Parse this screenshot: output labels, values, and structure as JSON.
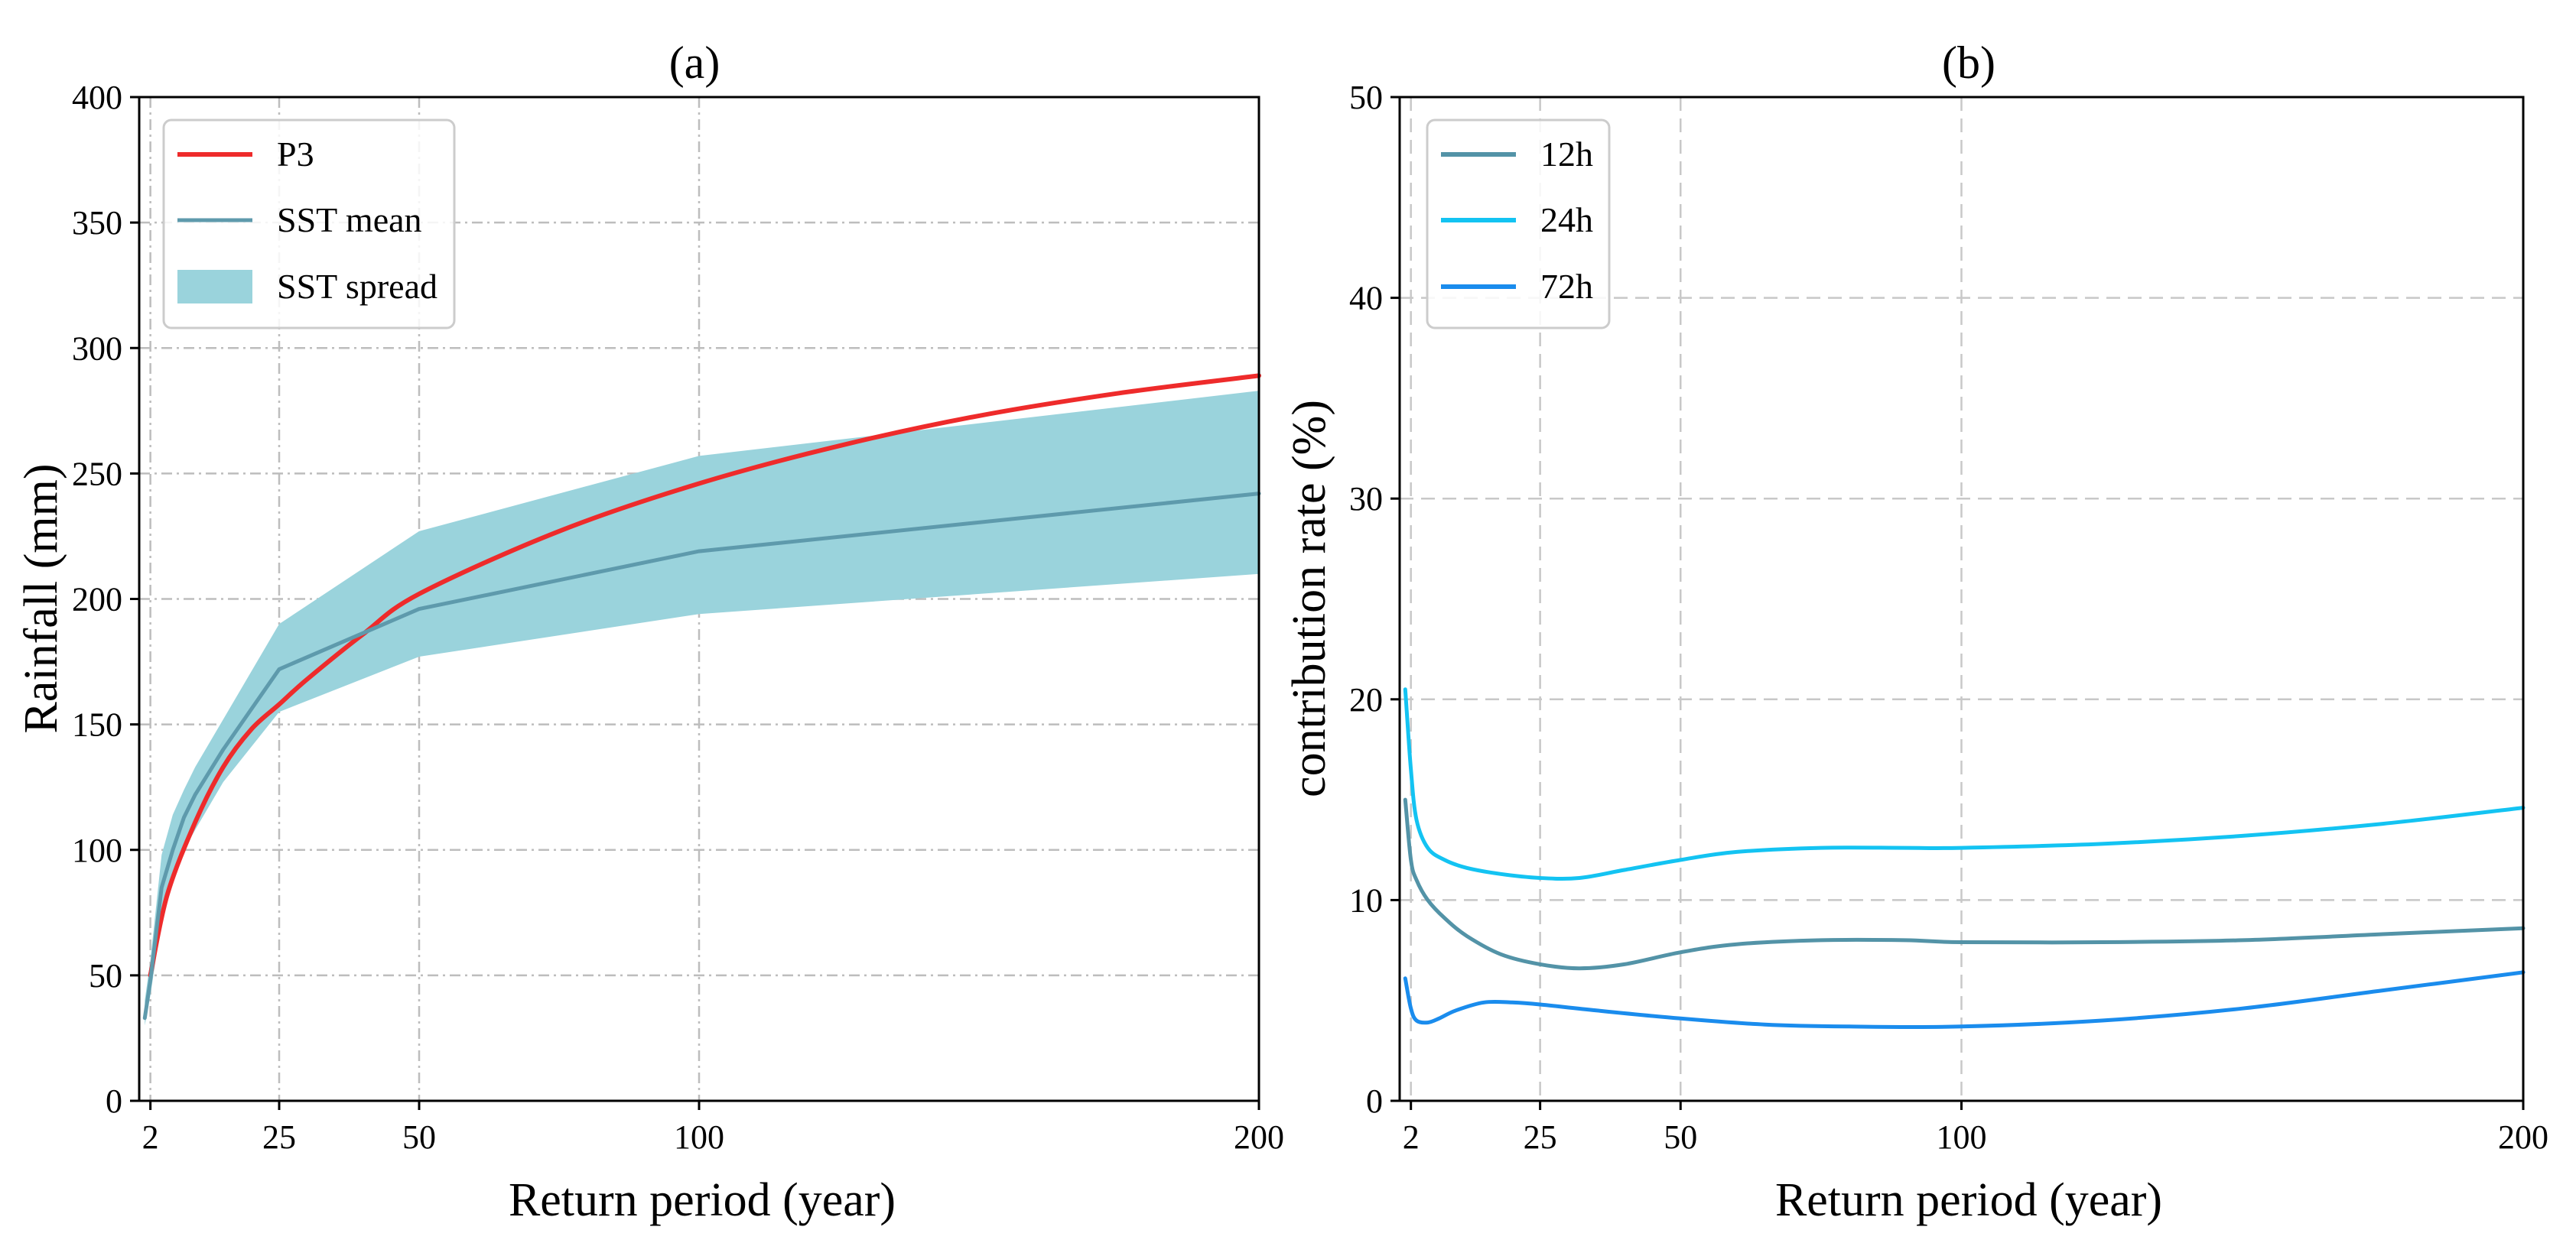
{
  "chart_data": [
    {
      "type": "line",
      "panel": "(a)",
      "title": "(a)",
      "xlabel": "Return period (year)",
      "ylabel": "Rainfall (mm)",
      "xlim": [
        0,
        200
      ],
      "ylim": [
        0,
        400
      ],
      "xticks": [
        2,
        25,
        50,
        100,
        200
      ],
      "yticks": [
        0,
        50,
        100,
        150,
        200,
        250,
        300,
        350,
        400
      ],
      "grid": "on, dash-dot",
      "legend_position": "upper-left",
      "series": [
        {
          "name": "P3",
          "kind": "line",
          "color": "#ee2b2b",
          "x": [
            2,
            5,
            10,
            15,
            20,
            25,
            30,
            40,
            50,
            75,
            100,
            125,
            150,
            175,
            200
          ],
          "y": [
            50,
            82,
            111,
            133,
            148,
            158,
            168,
            186,
            202,
            227,
            246,
            261,
            273,
            282,
            289
          ]
        },
        {
          "name": "SST mean",
          "kind": "line",
          "color": "#5e9aac",
          "x": [
            1,
            2,
            4,
            6,
            8,
            10,
            15,
            25,
            50,
            100,
            200
          ],
          "y": [
            33,
            48,
            85,
            100,
            113,
            122,
            140,
            172,
            196,
            219,
            242
          ]
        },
        {
          "name": "SST spread",
          "kind": "band",
          "color": "#9ad3dc",
          "x": [
            1,
            2,
            4,
            6,
            8,
            10,
            15,
            25,
            50,
            100,
            200
          ],
          "lower": [
            30,
            42,
            72,
            88,
            100,
            108,
            127,
            155,
            177,
            194,
            210
          ],
          "upper": [
            40,
            56,
            98,
            114,
            124,
            133,
            152,
            190,
            227,
            257,
            283
          ]
        }
      ]
    },
    {
      "type": "line",
      "panel": "(b)",
      "title": "(b)",
      "xlabel": "Return period (year)",
      "ylabel": "contribution rate (%)",
      "xlim": [
        0,
        200
      ],
      "ylim": [
        0,
        50
      ],
      "xticks": [
        2,
        25,
        50,
        100,
        200
      ],
      "yticks": [
        0,
        10,
        20,
        30,
        40,
        50
      ],
      "grid": "on, dashed",
      "legend_position": "upper-left",
      "series": [
        {
          "name": "12h",
          "color": "#5393a7",
          "x": [
            1,
            2,
            3,
            5,
            8,
            12,
            18,
            25,
            32,
            40,
            50,
            60,
            75,
            90,
            100,
            125,
            150,
            175,
            200
          ],
          "y": [
            15.0,
            12.0,
            11.0,
            10.0,
            9.1,
            8.2,
            7.3,
            6.8,
            6.6,
            6.8,
            7.4,
            7.8,
            8.0,
            8.0,
            7.9,
            7.9,
            8.0,
            8.3,
            8.6
          ]
        },
        {
          "name": "24h",
          "color": "#13c3f2",
          "x": [
            1,
            2,
            3,
            5,
            8,
            12,
            18,
            25,
            32,
            40,
            50,
            60,
            75,
            90,
            100,
            125,
            150,
            175,
            200
          ],
          "y": [
            20.5,
            16.5,
            14.0,
            12.6,
            12.0,
            11.6,
            11.3,
            11.1,
            11.1,
            11.5,
            12.0,
            12.4,
            12.6,
            12.6,
            12.6,
            12.8,
            13.2,
            13.8,
            14.6
          ]
        },
        {
          "name": "72h",
          "color": "#1a8ced",
          "x": [
            1,
            2,
            3,
            5,
            7,
            10,
            15,
            20,
            25,
            35,
            50,
            65,
            80,
            100,
            125,
            150,
            175,
            200
          ],
          "y": [
            6.1,
            4.6,
            4.0,
            3.9,
            4.1,
            4.5,
            4.9,
            4.9,
            4.8,
            4.5,
            4.1,
            3.8,
            3.7,
            3.7,
            4.0,
            4.6,
            5.5,
            6.4
          ]
        }
      ]
    }
  ]
}
